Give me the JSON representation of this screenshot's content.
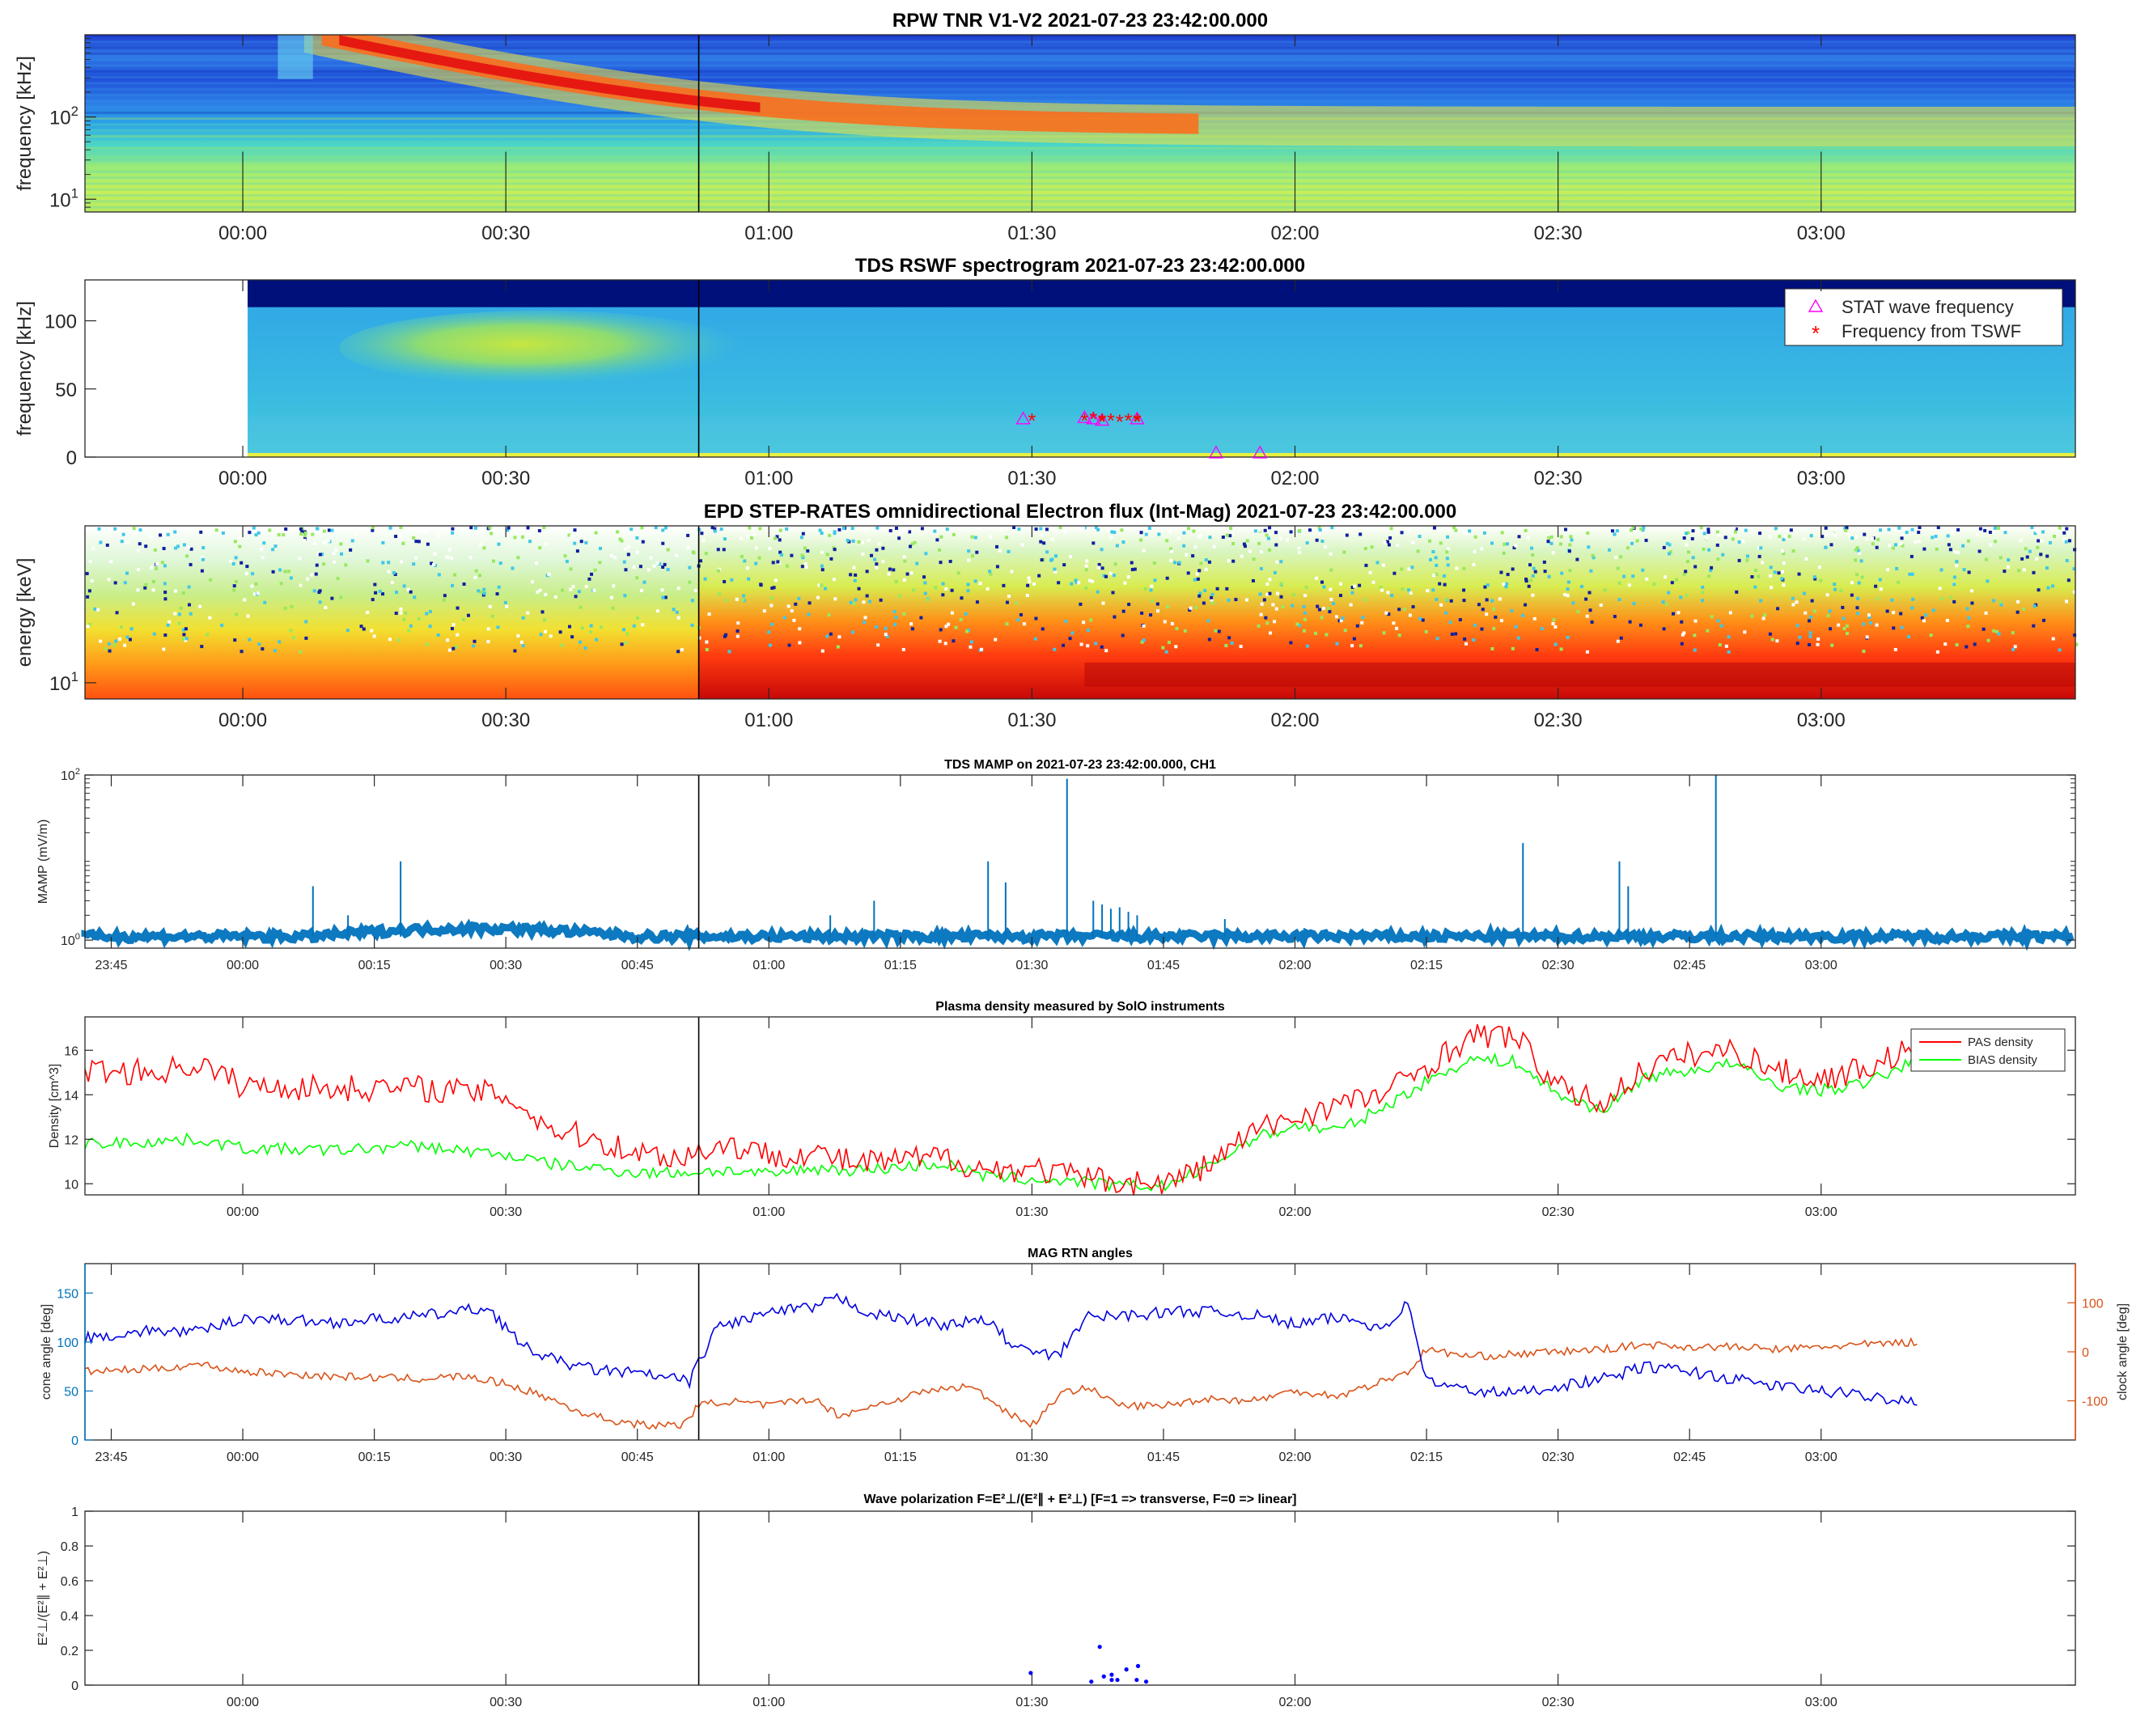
{
  "figure": {
    "colors": {
      "blue_trace": "#0072bd",
      "cone_axis": "#0072bd",
      "clock_trace": "#d95319",
      "pas": "#ff0000",
      "bias": "#00ff00",
      "stat_marker": "#ff00ff",
      "tswf_marker": "#ff0000",
      "polarization_dots": "#0000ff"
    }
  },
  "chart_data": [
    {
      "type": "heatmap",
      "title": "RPW TNR V1-V2 2021-07-23 23:42:00.000",
      "ylabel": "frequency [kHz]",
      "yscale": "log",
      "ylim": [
        7,
        1000
      ],
      "y_tick_labels": [
        "10",
        "10"
      ],
      "y_tick_exponents": [
        "1",
        "2"
      ],
      "x_tick_labels": [
        "00:00",
        "00:30",
        "01:00",
        "01:30",
        "02:00",
        "02:30",
        "03:00"
      ],
      "features": {
        "type_iii_burst_start": "00:07",
        "burst_drift_end_frequency_khz": 70
      }
    },
    {
      "type": "heatmap",
      "title": "TDS RSWF spectrogram 2021-07-23 23:42:00.000",
      "ylabel": "frequency [kHz]",
      "ylim": [
        0,
        130
      ],
      "y_tick_labels": [
        "0",
        "50",
        "100"
      ],
      "x_tick_labels": [
        "00:00",
        "00:30",
        "01:00",
        "01:30",
        "02:00",
        "02:30",
        "03:00"
      ],
      "legend": [
        "STAT wave frequency",
        "Frequency from TSWF"
      ],
      "legend_symbols": [
        "△",
        "*"
      ],
      "legend_position": "top-right",
      "stat_wave_frequency": [
        {
          "t": "01:29",
          "f": 28
        },
        {
          "t": "01:36",
          "f": 29
        },
        {
          "t": "01:37",
          "f": 28
        },
        {
          "t": "01:38",
          "f": 27
        },
        {
          "t": "01:42",
          "f": 28
        },
        {
          "t": "01:51",
          "f": 3
        },
        {
          "t": "01:56",
          "f": 3
        }
      ],
      "frequency_from_tswf": [
        {
          "t": "01:30",
          "f": 28
        },
        {
          "t": "01:36",
          "f": 28
        },
        {
          "t": "01:37",
          "f": 29
        },
        {
          "t": "01:38",
          "f": 27
        },
        {
          "t": "01:38",
          "f": 28
        },
        {
          "t": "01:39",
          "f": 28
        },
        {
          "t": "01:40",
          "f": 27
        },
        {
          "t": "01:41",
          "f": 28
        },
        {
          "t": "01:42",
          "f": 28
        },
        {
          "t": "01:42",
          "f": 27
        }
      ]
    },
    {
      "type": "heatmap",
      "title": "EPD STEP-RATES omnidirectional Electron flux (Int-Mag) 2021-07-23 23:42:00.000",
      "ylabel": "energy [keV]",
      "yscale": "log",
      "y_tick_labels": [
        "10"
      ],
      "y_tick_exponents": [
        "1"
      ],
      "x_tick_labels": [
        "00:00",
        "00:30",
        "01:00",
        "01:30",
        "02:00",
        "02:30",
        "03:00"
      ],
      "features": {
        "flux_enhancement_start": "00:52"
      }
    },
    {
      "type": "line",
      "title": "TDS MAMP on 2021-07-23 23:42:00.000, CH1",
      "ylabel": "MAMP (mV/m)",
      "yscale": "log",
      "ylim": [
        0.8,
        100
      ],
      "y_tick_labels": [
        "10",
        "10"
      ],
      "y_tick_exponents": [
        "0",
        "2"
      ],
      "x_tick_labels": [
        "23:45",
        "00:00",
        "00:15",
        "00:30",
        "00:45",
        "01:00",
        "01:15",
        "01:30",
        "01:45",
        "02:00",
        "02:15",
        "02:30",
        "02:45",
        "03:00"
      ],
      "baseline_mv_m": 1.1,
      "spikes": [
        {
          "t": "00:08",
          "v": 4.5
        },
        {
          "t": "00:12",
          "v": 2.0
        },
        {
          "t": "00:18",
          "v": 9.0
        },
        {
          "t": "01:07",
          "v": 2.0
        },
        {
          "t": "01:12",
          "v": 3.0
        },
        {
          "t": "01:25",
          "v": 9.0
        },
        {
          "t": "01:27",
          "v": 5.0
        },
        {
          "t": "01:34",
          "v": 90.0
        },
        {
          "t": "01:37",
          "v": 3.0
        },
        {
          "t": "01:38",
          "v": 2.7
        },
        {
          "t": "01:39",
          "v": 2.4
        },
        {
          "t": "01:40",
          "v": 2.5
        },
        {
          "t": "01:41",
          "v": 2.2
        },
        {
          "t": "01:42",
          "v": 2.0
        },
        {
          "t": "01:52",
          "v": 1.8
        },
        {
          "t": "02:26",
          "v": 15.0
        },
        {
          "t": "02:37",
          "v": 9.0
        },
        {
          "t": "02:38",
          "v": 4.5
        },
        {
          "t": "02:48",
          "v": 100.0
        }
      ]
    },
    {
      "type": "line",
      "title": "Plasma density measured by SolO instruments",
      "ylabel": "Density [cm^3]",
      "ylim": [
        9.5,
        17.5
      ],
      "y_tick_labels": [
        "10",
        "12",
        "14",
        "16"
      ],
      "x_tick_labels": [
        "00:00",
        "00:30",
        "01:00",
        "01:30",
        "02:00",
        "02:30",
        "03:00"
      ],
      "legend_position": "top-right",
      "series": [
        {
          "name": "PAS density",
          "points": [
            [
              "23:42",
              15.1
            ],
            [
              "23:50",
              15.0
            ],
            [
              "23:55",
              15.4
            ],
            [
              "00:00",
              14.4
            ],
            [
              "00:10",
              14.3
            ],
            [
              "00:20",
              14.3
            ],
            [
              "00:30",
              14.0
            ],
            [
              "00:35",
              12.5
            ],
            [
              "00:40",
              12.0
            ],
            [
              "00:45",
              11.4
            ],
            [
              "00:50",
              11.2
            ],
            [
              "00:55",
              11.8
            ],
            [
              "01:00",
              11.3
            ],
            [
              "01:05",
              11.4
            ],
            [
              "01:10",
              10.9
            ],
            [
              "01:20",
              11.2
            ],
            [
              "01:25",
              10.6
            ],
            [
              "01:30",
              10.7
            ],
            [
              "01:35",
              10.3
            ],
            [
              "01:40",
              10.1
            ],
            [
              "01:45",
              10.0
            ],
            [
              "01:50",
              10.8
            ],
            [
              "01:55",
              12.3
            ],
            [
              "02:00",
              13.0
            ],
            [
              "02:05",
              13.6
            ],
            [
              "02:10",
              14.0
            ],
            [
              "02:15",
              15.3
            ],
            [
              "02:20",
              16.6
            ],
            [
              "02:25",
              16.7
            ],
            [
              "02:30",
              14.3
            ],
            [
              "02:35",
              13.6
            ],
            [
              "02:40",
              15.2
            ],
            [
              "02:45",
              15.8
            ],
            [
              "02:50",
              16.0
            ],
            [
              "02:55",
              15.1
            ],
            [
              "03:00",
              14.7
            ],
            [
              "03:05",
              15.2
            ],
            [
              "03:11",
              16.2
            ]
          ]
        },
        {
          "name": "BIAS density",
          "points": [
            [
              "23:42",
              11.8
            ],
            [
              "23:50",
              11.9
            ],
            [
              "23:55",
              12.0
            ],
            [
              "00:00",
              11.6
            ],
            [
              "00:10",
              11.5
            ],
            [
              "00:20",
              11.7
            ],
            [
              "00:30",
              11.3
            ],
            [
              "00:35",
              10.9
            ],
            [
              "00:40",
              10.7
            ],
            [
              "00:45",
              10.5
            ],
            [
              "00:50",
              10.5
            ],
            [
              "00:55",
              10.6
            ],
            [
              "01:00",
              10.4
            ],
            [
              "01:05",
              10.7
            ],
            [
              "01:10",
              10.6
            ],
            [
              "01:20",
              10.9
            ],
            [
              "01:25",
              10.3
            ],
            [
              "01:30",
              10.2
            ],
            [
              "01:35",
              10.1
            ],
            [
              "01:40",
              9.9
            ],
            [
              "01:45",
              9.9
            ],
            [
              "01:50",
              10.7
            ],
            [
              "01:55",
              12.0
            ],
            [
              "02:00",
              12.6
            ],
            [
              "02:05",
              12.4
            ],
            [
              "02:10",
              13.4
            ],
            [
              "02:15",
              14.6
            ],
            [
              "02:20",
              15.6
            ],
            [
              "02:25",
              15.5
            ],
            [
              "02:30",
              14.0
            ],
            [
              "02:35",
              13.3
            ],
            [
              "02:40",
              14.8
            ],
            [
              "02:45",
              15.1
            ],
            [
              "02:50",
              15.4
            ],
            [
              "02:55",
              14.4
            ],
            [
              "03:00",
              14.2
            ],
            [
              "03:05",
              14.5
            ],
            [
              "03:11",
              15.6
            ]
          ]
        }
      ]
    },
    {
      "type": "line",
      "title": "MAG RTN angles",
      "ylabel": "cone angle [deg]",
      "y2label": "clock angle [deg]",
      "ylim": [
        0,
        180
      ],
      "y2lim": [
        -180,
        180
      ],
      "y_tick_labels": [
        "0",
        "50",
        "100",
        "150"
      ],
      "y2_tick_labels": [
        "-100",
        "0",
        "100"
      ],
      "x_tick_labels": [
        "23:45",
        "00:00",
        "00:15",
        "00:30",
        "00:45",
        "01:00",
        "01:15",
        "01:30",
        "01:45",
        "02:00",
        "02:15",
        "02:30",
        "02:45",
        "03:00"
      ],
      "series": [
        {
          "name": "cone angle",
          "axis": "left",
          "points": [
            [
              "23:42",
              104
            ],
            [
              "23:50",
              112
            ],
            [
              "23:55",
              110
            ],
            [
              "00:00",
              125
            ],
            [
              "00:10",
              120
            ],
            [
              "00:20",
              126
            ],
            [
              "00:28",
              135
            ],
            [
              "00:32",
              95
            ],
            [
              "00:36",
              80
            ],
            [
              "00:40",
              72
            ],
            [
              "00:45",
              68
            ],
            [
              "00:51",
              60
            ],
            [
              "00:54",
              115
            ],
            [
              "01:00",
              130
            ],
            [
              "01:05",
              135
            ],
            [
              "01:08",
              145
            ],
            [
              "01:12",
              128
            ],
            [
              "01:20",
              118
            ],
            [
              "01:25",
              122
            ],
            [
              "01:28",
              95
            ],
            [
              "01:31",
              88
            ],
            [
              "01:33",
              85
            ],
            [
              "01:36",
              125
            ],
            [
              "01:42",
              128
            ],
            [
              "01:48",
              132
            ],
            [
              "01:55",
              128
            ],
            [
              "02:00",
              118
            ],
            [
              "02:05",
              125
            ],
            [
              "02:10",
              115
            ],
            [
              "02:13",
              140
            ],
            [
              "02:15",
              60
            ],
            [
              "02:20",
              50
            ],
            [
              "02:25",
              48
            ],
            [
              "02:30",
              55
            ],
            [
              "02:35",
              62
            ],
            [
              "02:40",
              75
            ],
            [
              "02:45",
              70
            ],
            [
              "02:50",
              62
            ],
            [
              "02:55",
              55
            ],
            [
              "03:00",
              50
            ],
            [
              "03:05",
              45
            ],
            [
              "03:11",
              40
            ]
          ]
        },
        {
          "name": "clock angle",
          "axis": "right",
          "points": [
            [
              "23:42",
              -40
            ],
            [
              "23:50",
              -35
            ],
            [
              "23:55",
              -25
            ],
            [
              "00:00",
              -40
            ],
            [
              "00:10",
              -50
            ],
            [
              "00:20",
              -55
            ],
            [
              "00:25",
              -50
            ],
            [
              "00:30",
              -65
            ],
            [
              "00:35",
              -95
            ],
            [
              "00:38",
              -120
            ],
            [
              "00:42",
              -140
            ],
            [
              "00:46",
              -150
            ],
            [
              "00:50",
              -150
            ],
            [
              "00:52",
              -110
            ],
            [
              "00:55",
              -100
            ],
            [
              "01:00",
              -110
            ],
            [
              "01:05",
              -95
            ],
            [
              "01:08",
              -130
            ],
            [
              "01:12",
              -110
            ],
            [
              "01:18",
              -80
            ],
            [
              "01:23",
              -70
            ],
            [
              "01:27",
              -120
            ],
            [
              "01:30",
              -150
            ],
            [
              "01:33",
              -90
            ],
            [
              "01:36",
              -70
            ],
            [
              "01:40",
              -110
            ],
            [
              "01:45",
              -110
            ],
            [
              "01:50",
              -95
            ],
            [
              "01:55",
              -100
            ],
            [
              "02:00",
              -80
            ],
            [
              "02:05",
              -90
            ],
            [
              "02:10",
              -60
            ],
            [
              "02:13",
              -40
            ],
            [
              "02:15",
              5
            ],
            [
              "02:20",
              -10
            ],
            [
              "02:25",
              -5
            ],
            [
              "02:30",
              0
            ],
            [
              "02:35",
              5
            ],
            [
              "02:40",
              15
            ],
            [
              "02:45",
              10
            ],
            [
              "02:50",
              10
            ],
            [
              "02:55",
              5
            ],
            [
              "03:00",
              10
            ],
            [
              "03:05",
              15
            ],
            [
              "03:11",
              20
            ]
          ]
        }
      ]
    },
    {
      "type": "scatter",
      "title": "Wave polarization  F=E²⊥/(E²∥ + E²⊥) [F=1 => transverse, F=0 => linear]",
      "ylabel": "E²⊥/(E²∥ + E²⊥)",
      "ylim": [
        0,
        1
      ],
      "y_tick_labels": [
        "0",
        "0.2",
        "0.4",
        "0.6",
        "0.8",
        "1"
      ],
      "x_tick_labels": [
        "00:00",
        "00:30",
        "01:00",
        "01:30",
        "02:00",
        "02:30",
        "03:00"
      ],
      "points": [
        {
          "t": "01:30",
          "v": 0.07
        },
        {
          "t": "01:37",
          "v": 0.02
        },
        {
          "t": "01:38",
          "v": 0.05
        },
        {
          "t": "01:38",
          "v": 0.22
        },
        {
          "t": "01:39",
          "v": 0.03
        },
        {
          "t": "01:39",
          "v": 0.06
        },
        {
          "t": "01:40",
          "v": 0.03
        },
        {
          "t": "01:41",
          "v": 0.09
        },
        {
          "t": "01:42",
          "v": 0.11
        },
        {
          "t": "01:42",
          "v": 0.03
        },
        {
          "t": "01:43",
          "v": 0.02
        }
      ]
    }
  ]
}
